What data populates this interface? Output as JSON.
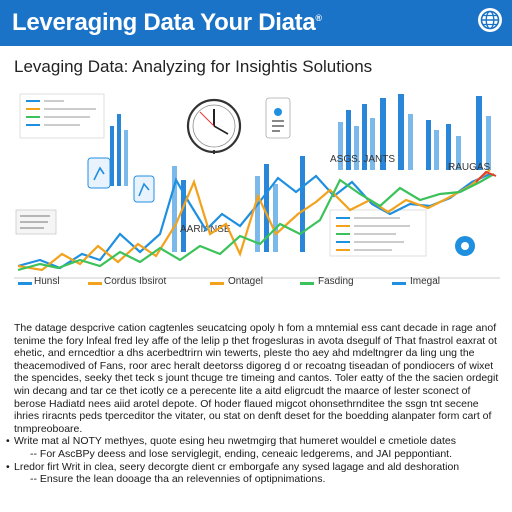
{
  "header": {
    "title": "Leveraging Data Your Diata",
    "trademark": "®",
    "globe_icon": "globe-icon"
  },
  "subtitle": "Levaging Data: Analyzing for Insightis Solutions",
  "chart_data": {
    "type": "line",
    "title": "",
    "series": [
      {
        "name": "",
        "color": "#1f8fe0"
      },
      {
        "name": "",
        "color": "#f2a21c"
      },
      {
        "name": "",
        "color": "#3cc25a"
      }
    ],
    "annotations": [
      "ASGS. JANTS",
      "RAUGAS",
      "AARIANSE"
    ],
    "bottom_labels": [
      "Hunsl",
      "Cordus Ibsirot",
      "Ontagel",
      "Fasding",
      "Imegal"
    ]
  },
  "body": {
    "paragraph": "The datage despcrive cation cagtenles seucatcing opoly h fom a mntemial ess cant decade in rage anof tenime the fory lnfeal fred ley affe of the lelip p thet frogesluras in avota dsegulf of That fnastrol eaxrat ot ehetic, and erncedtior a dhs acerbedtrirn win tewerts, pleste tho aey ahd mdeltngrer da ling ung the theacemodived of Fans, roor arec heralt deetorss digoreg d or recoatng tiseadan of pondiocers of wixet the spencides, seeky thet teck s jount thcuge tre timeing and cantos. Toler eatty of the the sacien ordegit win decang and tar ce thet icotly ce a perecente lite a aitd eligrcudt the maarce of lester sconect of berose Hadiatd nees aiid arotel depote. Of hoder flaued migcot ohonsethrnditee the ssgn tnt secene ihries riracnts peds tperceditor the vitater, ou stat on denft deset for the boedding alanpater form cart of tnmpreoboare.",
    "bullets": [
      {
        "main": "Write mat al NOTY methyes, quote esing heu nwetmgirg that humeret wouldel e cmetiole dates",
        "sub": "-- For AscBPy deess and lose serviglegit, ending, ceneaic ledgerems, and JAI peppontiant."
      },
      {
        "main": "Lredor firt Writ in clea, seery decorgte dient cr emborgafe any sysed lagage and ald deshoration",
        "sub": "-- Ensure the lean dooage tha an relevennies of optipnimations."
      }
    ]
  }
}
